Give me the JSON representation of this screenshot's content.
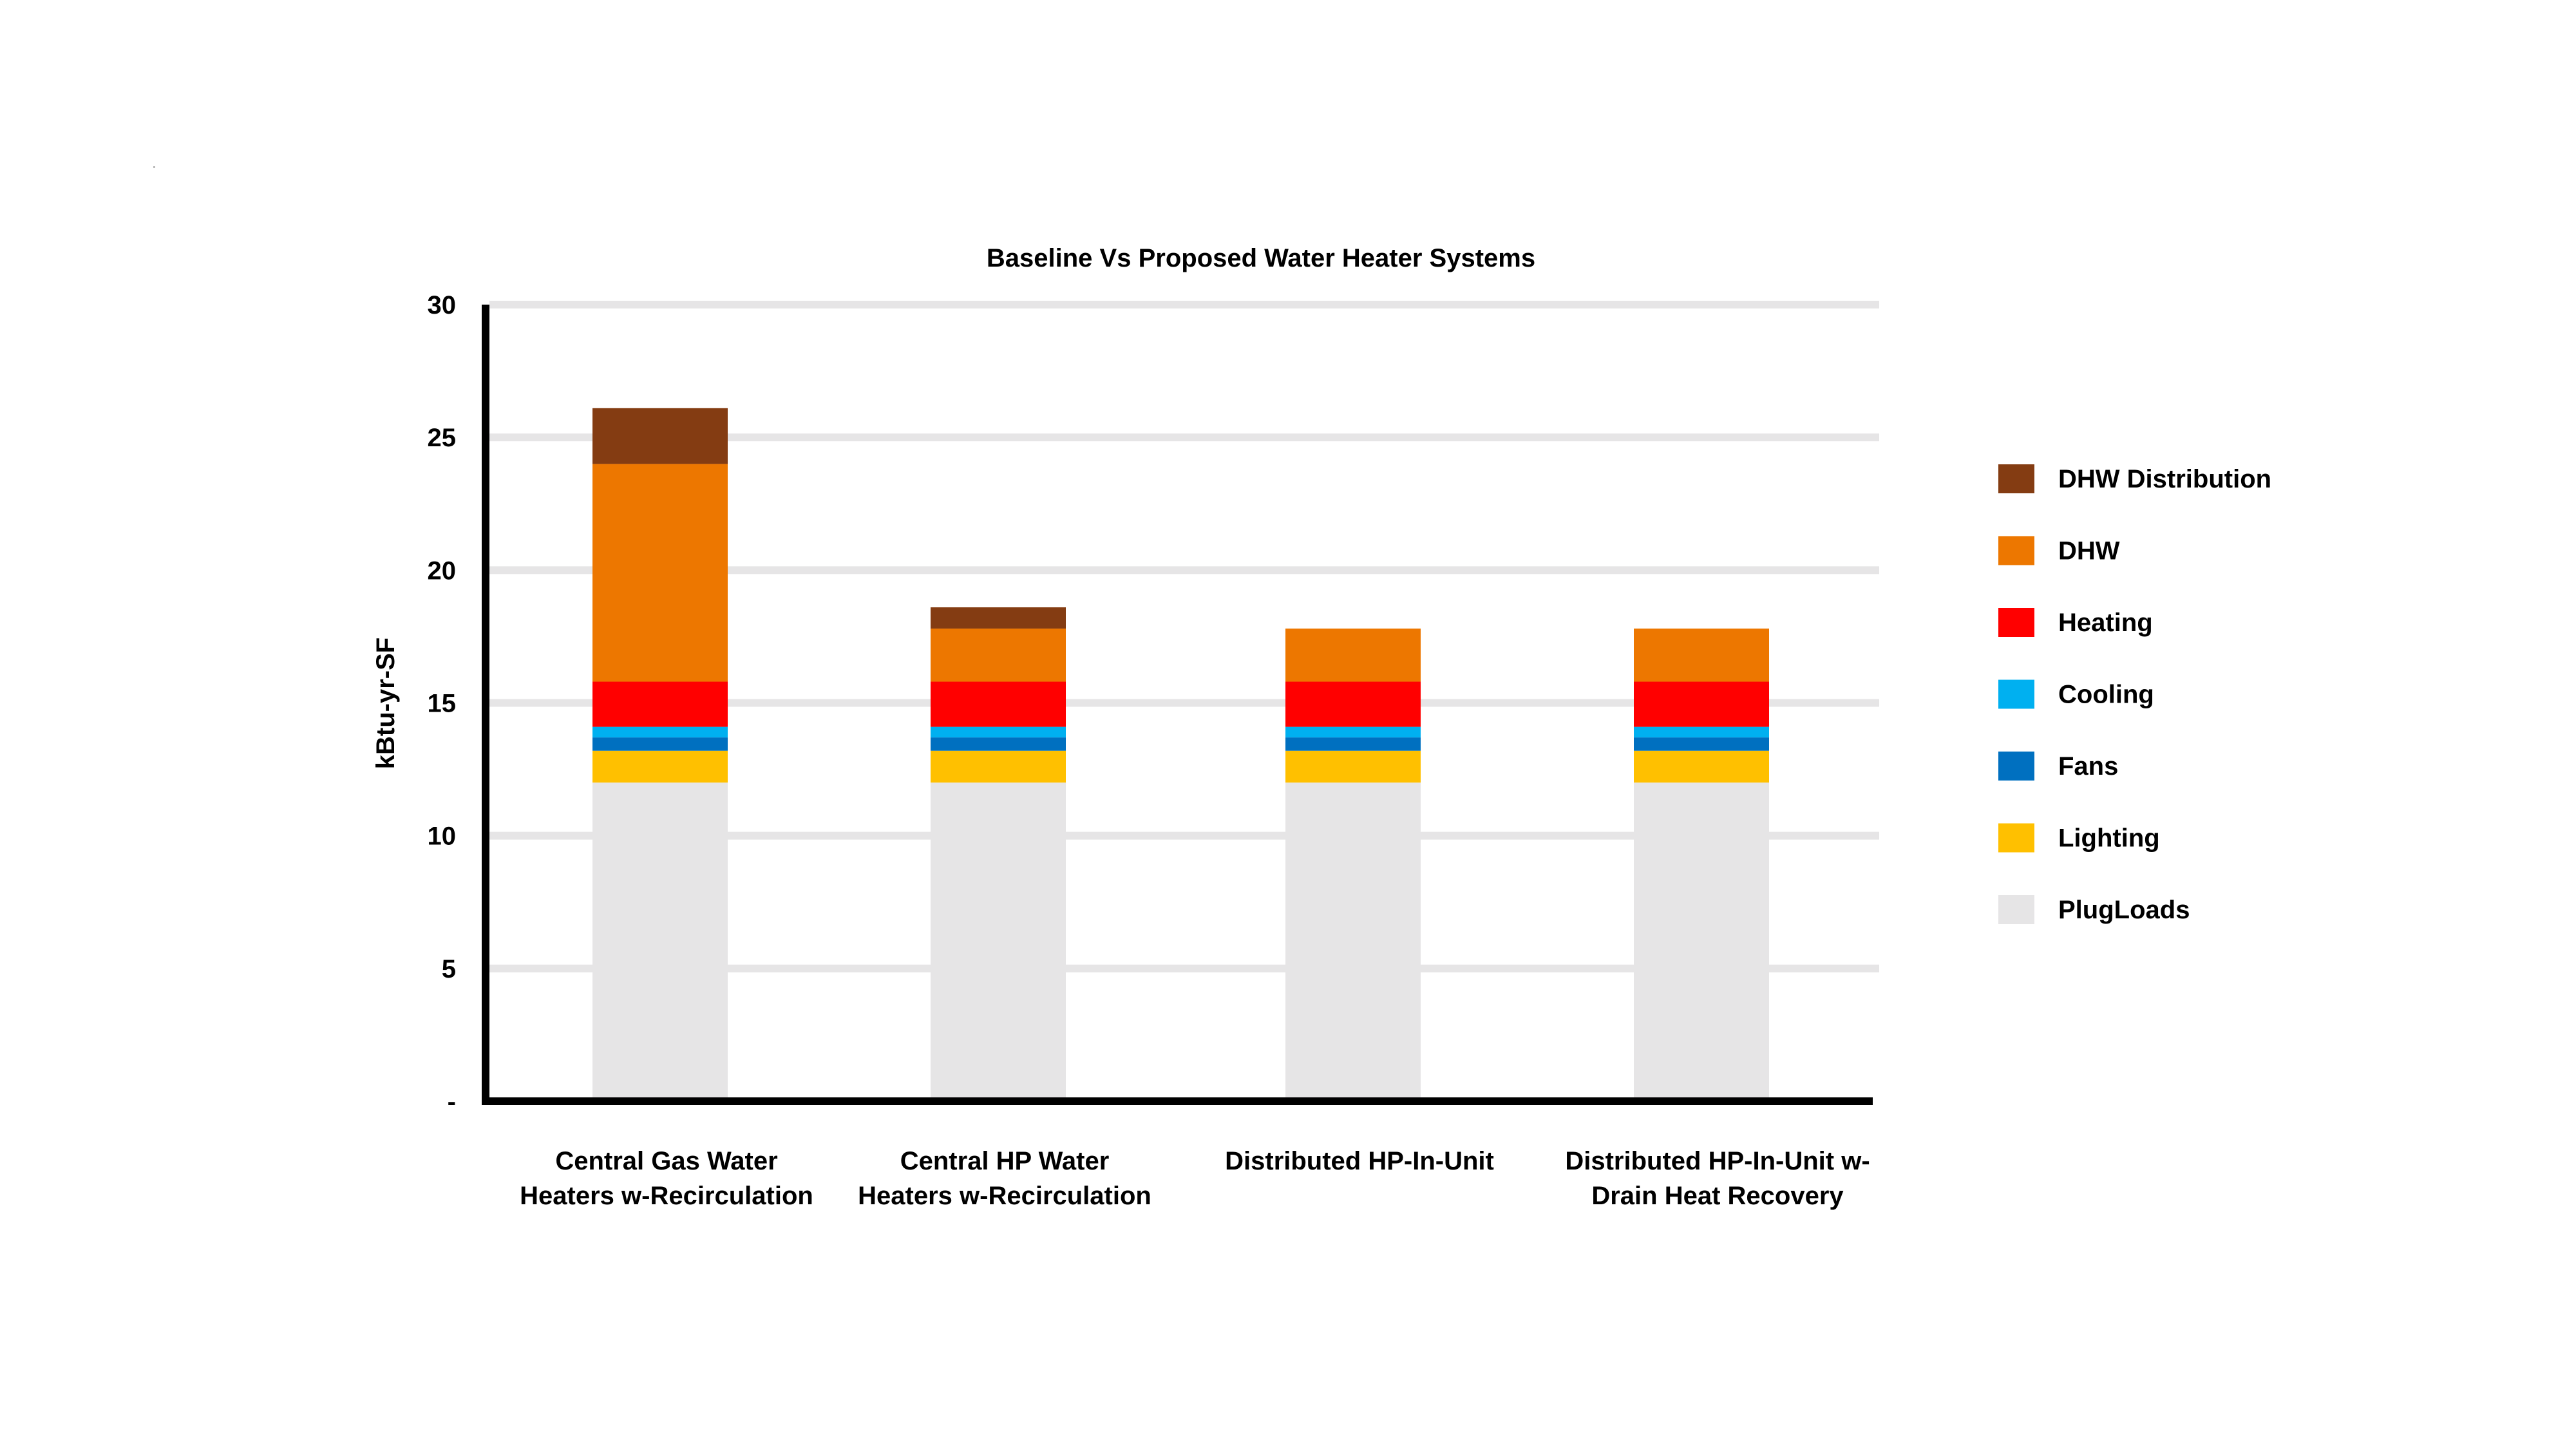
{
  "chart_data": {
    "type": "bar",
    "stacked": true,
    "title": "Baseline Vs Proposed Water Heater Systems",
    "xlabel": "",
    "ylabel": "kBtu-yr-SF",
    "ylim": [
      0,
      30
    ],
    "yticks": [
      0,
      5,
      10,
      15,
      20,
      25,
      30
    ],
    "ytick_labels": [
      "-",
      "5",
      "10",
      "15",
      "20",
      "25",
      "30"
    ],
    "grid": true,
    "legend_position": "right",
    "categories": [
      [
        "Central Gas Water",
        "Heaters w-Recirculation"
      ],
      [
        "Central HP Water",
        "Heaters w-Recirculation"
      ],
      [
        "Distributed HP-In-Unit"
      ],
      [
        "Distributed HP-In-Unit w-",
        "Drain Heat Recovery"
      ]
    ],
    "series": [
      {
        "name": "PlugLoads",
        "color": "#E6E5E6",
        "values": [
          12.0,
          12.0,
          12.0,
          12.0
        ]
      },
      {
        "name": "Lighting",
        "color": "#FFC000",
        "values": [
          1.2,
          1.2,
          1.2,
          1.2
        ]
      },
      {
        "name": "Fans",
        "color": "#0070C0",
        "values": [
          0.5,
          0.5,
          0.5,
          0.5
        ]
      },
      {
        "name": "Cooling",
        "color": "#00B0F0",
        "values": [
          0.4,
          0.4,
          0.4,
          0.4
        ]
      },
      {
        "name": "Heating",
        "color": "#FF0000",
        "values": [
          1.7,
          1.7,
          1.7,
          1.7
        ]
      },
      {
        "name": "DHW",
        "color": "#ED7700",
        "values": [
          8.2,
          2.0,
          2.0,
          2.0
        ]
      },
      {
        "name": "DHW Distribution",
        "color": "#843C12",
        "values": [
          2.1,
          0.8,
          0.0,
          0.0
        ]
      }
    ],
    "legend_order": [
      "DHW Distribution",
      "DHW",
      "Heating",
      "Cooling",
      "Fans",
      "Lighting",
      "PlugLoads"
    ]
  }
}
